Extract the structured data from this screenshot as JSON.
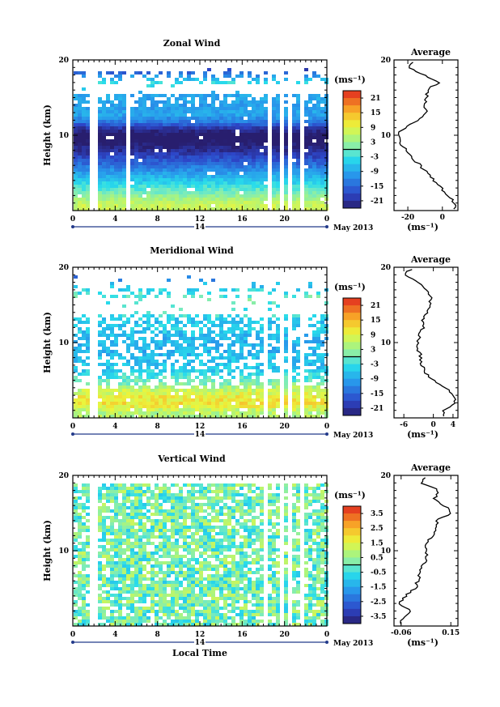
{
  "chart_data": [
    {
      "type": "heatmap",
      "title": "Zonal Wind",
      "ylabel": "Height (km)",
      "xlabel": "",
      "x_ticks": [
        "0",
        "4",
        "8",
        "12",
        "16",
        "20",
        "0"
      ],
      "y_ticks": [
        "10",
        "20"
      ],
      "day_label": "14",
      "date_label": "May 2013",
      "colorbar": {
        "unit": "(ms⁻¹)",
        "ticks": [
          "21",
          "15",
          "9",
          "3",
          "-3",
          "-9",
          "-15",
          "-21"
        ],
        "range": [
          -24,
          24
        ]
      },
      "gaps_hours": [
        [
          1.5,
          2.2
        ],
        [
          4.7,
          5.3
        ],
        [
          16.2,
          16.5
        ],
        [
          18.2,
          18.5
        ],
        [
          19.3,
          19.6
        ],
        [
          20.1,
          20.5
        ],
        [
          21.3,
          21.6
        ]
      ],
      "profile": {
        "title": "Average",
        "x_ticks": [
          "-20",
          "0"
        ],
        "xlim": [
          -28,
          9
        ],
        "xunit": "(ms⁻¹)",
        "y_ticks": [
          "10",
          "20"
        ],
        "heights": [
          1,
          2,
          3,
          4,
          5,
          6,
          7,
          8,
          9,
          10,
          11,
          12,
          13,
          14,
          15,
          16,
          17,
          18,
          19,
          20
        ],
        "values": [
          7,
          3,
          -1,
          -5,
          -9,
          -13,
          -17,
          -21,
          -24,
          -26,
          -22,
          -13,
          -9,
          -10,
          -9,
          -9,
          -2,
          -10,
          -20,
          -17
        ]
      }
    },
    {
      "type": "heatmap",
      "title": "Meridional Wind",
      "ylabel": "Height (km)",
      "xlabel": "",
      "x_ticks": [
        "0",
        "4",
        "8",
        "12",
        "16",
        "20",
        "0"
      ],
      "y_ticks": [
        "10",
        "20"
      ],
      "day_label": "14",
      "date_label": "May 2013",
      "colorbar": {
        "unit": "(ms⁻¹)",
        "ticks": [
          "21",
          "15",
          "9",
          "3",
          "-3",
          "-9",
          "-15",
          "-21"
        ],
        "range": [
          -24,
          24
        ]
      },
      "gaps_hours": [
        [
          1.5,
          2.2
        ],
        [
          17.8,
          18.1
        ],
        [
          19.3,
          19.6
        ],
        [
          20.1,
          20.5
        ],
        [
          21.3,
          21.6
        ]
      ],
      "profile": {
        "title": "Average",
        "x_ticks": [
          "-6",
          "0",
          "4"
        ],
        "xlim": [
          -8,
          5
        ],
        "xunit": "(ms⁻¹)",
        "y_ticks": [
          "10",
          "20"
        ],
        "heights": [
          1,
          2,
          3,
          4,
          5,
          6,
          7,
          8,
          9,
          10,
          11,
          12,
          13,
          14,
          15,
          16,
          17,
          18,
          19,
          20
        ],
        "values": [
          2,
          4.5,
          4,
          2.5,
          0,
          -1.5,
          -2.5,
          -2.5,
          -3,
          -3,
          -3,
          -2,
          -2.5,
          -1,
          -1,
          0,
          -1.5,
          -3,
          -6,
          -4
        ]
      }
    },
    {
      "type": "heatmap",
      "title": "Vertical Wind",
      "ylabel": "Height (km)",
      "xlabel": "Local Time",
      "x_ticks": [
        "0",
        "4",
        "8",
        "12",
        "16",
        "20",
        "0"
      ],
      "y_ticks": [
        "10",
        "20"
      ],
      "day_label": "14",
      "date_label": "May 2013",
      "colorbar": {
        "unit": "(ms⁻¹)",
        "ticks": [
          "3.5",
          "2.5",
          "1.5",
          "0.5",
          "-0.5",
          "-1.5",
          "-2.5",
          "-3.5"
        ],
        "range": [
          -4,
          4
        ]
      },
      "gaps_hours": [
        [
          1.5,
          2.2
        ],
        [
          17.8,
          18.1
        ],
        [
          19.3,
          19.6
        ],
        [
          20.1,
          20.5
        ],
        [
          21.3,
          21.6
        ]
      ],
      "profile": {
        "title": "Average",
        "x_ticks": [
          "-0.06",
          "0.15"
        ],
        "xlim": [
          -0.09,
          0.18
        ],
        "xunit": "(ms⁻¹)",
        "y_ticks": [
          "10",
          "20"
        ],
        "heights": [
          1,
          2,
          3,
          4,
          5,
          6,
          7,
          8,
          9,
          10,
          11,
          12,
          13,
          14,
          15,
          16,
          17,
          18,
          19,
          20
        ],
        "values": [
          -0.06,
          -0.02,
          -0.07,
          -0.04,
          0.0,
          0.01,
          0.02,
          0.03,
          0.05,
          0.04,
          0.05,
          0.07,
          0.09,
          0.09,
          0.16,
          0.12,
          0.08,
          0.1,
          0.02,
          0.05
        ]
      }
    }
  ]
}
